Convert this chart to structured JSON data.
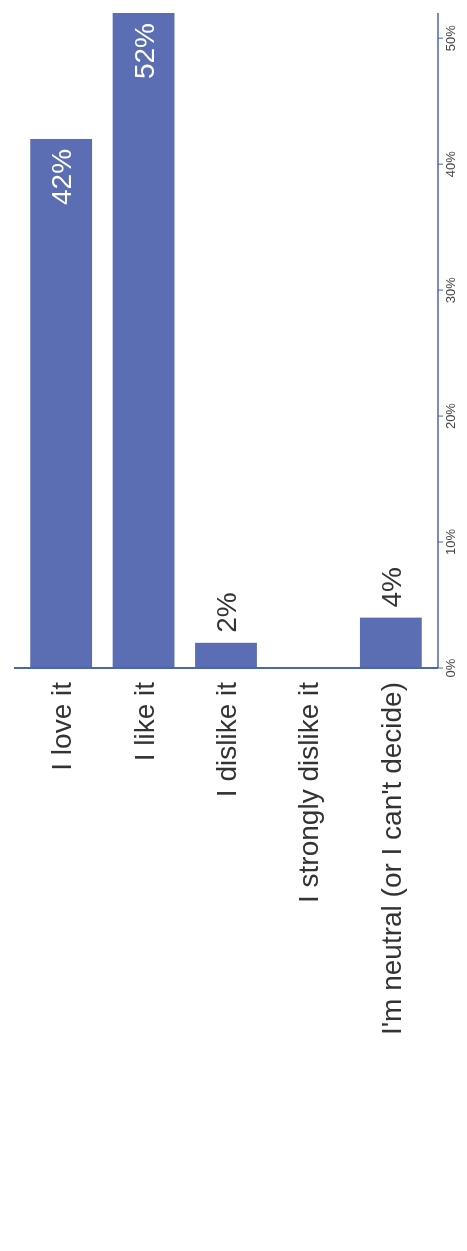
{
  "chart_data": {
    "type": "bar",
    "categories": [
      "I love it",
      "I like it",
      "I dislike it",
      "I strongly dislike it",
      "I'm neutral (or I can't decide)"
    ],
    "values": [
      42,
      52,
      2,
      0,
      4
    ],
    "value_labels": [
      "42%",
      "52%",
      "2%",
      null,
      "4%"
    ],
    "color": "#5b6db3",
    "ylim": [
      0,
      52
    ],
    "yticks": [
      {
        "value": 0,
        "label": "0%"
      },
      {
        "value": 10,
        "label": "10%"
      },
      {
        "value": 20,
        "label": "20%"
      },
      {
        "value": 30,
        "label": "30%"
      },
      {
        "value": 40,
        "label": "40%"
      },
      {
        "value": 50,
        "label": "50%"
      }
    ],
    "grid": false
  }
}
